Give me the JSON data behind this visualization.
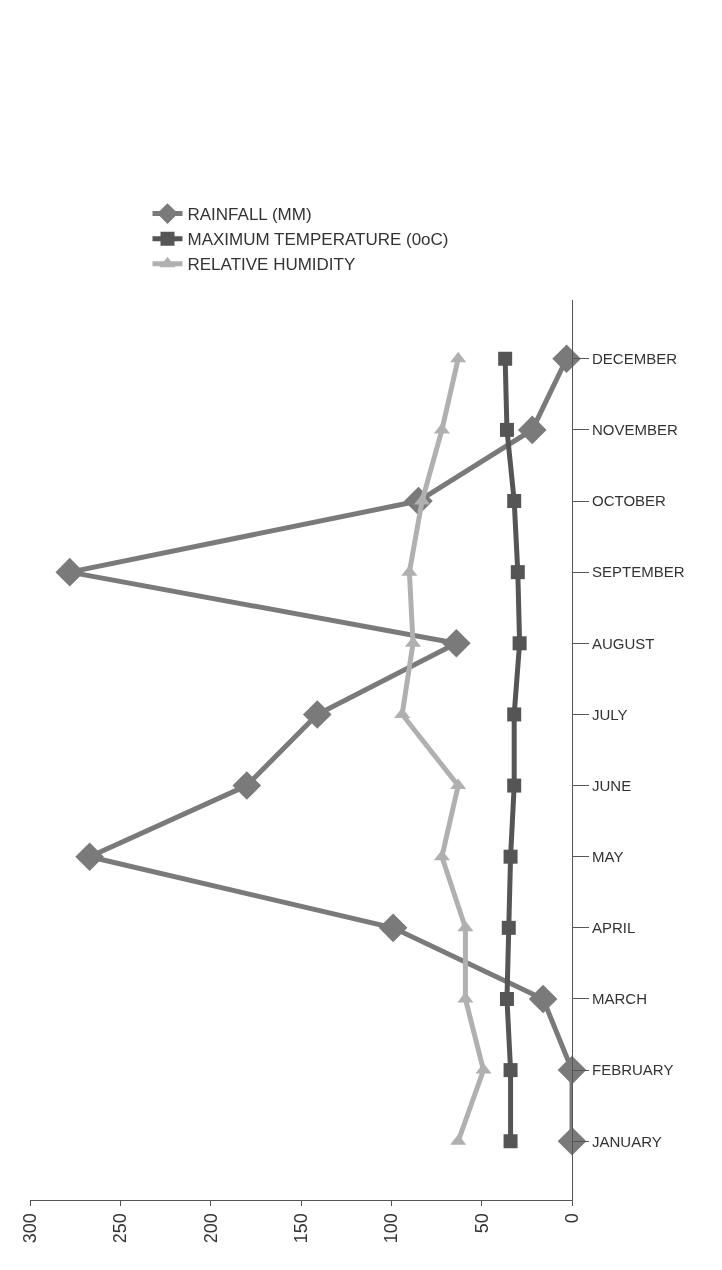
{
  "chart_data": {
    "type": "line",
    "orientation": "horizontal",
    "categories": [
      "DECEMBER",
      "NOVEMBER",
      "OCTOBER",
      "SEPTEMBER",
      "AUGUST",
      "JULY",
      "JUNE",
      "MAY",
      "APRIL",
      "MARCH",
      "FEBRUARY",
      "JANUARY"
    ],
    "series": [
      {
        "name": "RAINFALL (MM)",
        "color": "#7a7a7a",
        "marker": "diamond",
        "values": [
          3,
          22,
          85,
          278,
          64,
          141,
          180,
          267,
          99,
          16,
          0,
          0
        ]
      },
      {
        "name": "MAXIMUM TEMPERATURE (0oC)",
        "color": "#555555",
        "marker": "square",
        "values": [
          37,
          36,
          32,
          30,
          29,
          32,
          32,
          34,
          35,
          36,
          34,
          34
        ]
      },
      {
        "name": "RELATIVE HUMIDITY",
        "color": "#b0b0b0",
        "marker": "triangle",
        "values": [
          63,
          72,
          83,
          90,
          88,
          94,
          63,
          72,
          59,
          59,
          49,
          63
        ]
      }
    ],
    "xlim": [
      300,
      0
    ],
    "xticks": [
      0,
      50,
      100,
      150,
      200,
      250,
      300
    ],
    "legend": "top"
  }
}
